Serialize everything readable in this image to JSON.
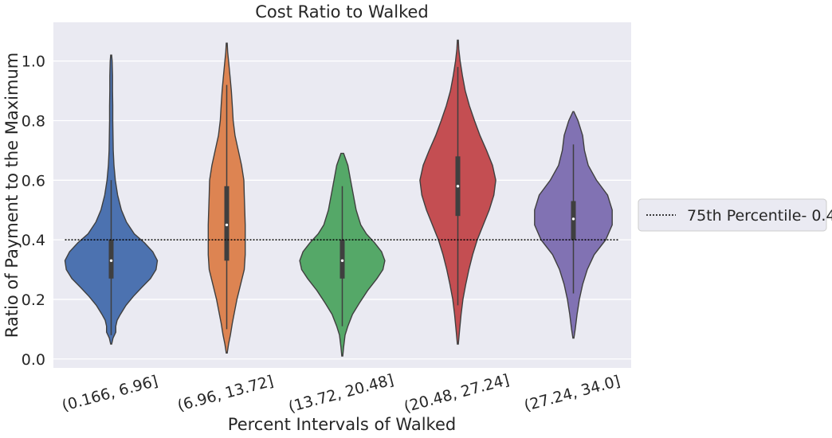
{
  "chart_data": {
    "type": "violin",
    "title": "Cost Ratio to Walked",
    "xlabel": "Percent Intervals of Walked",
    "ylabel": "Ratio of Payment to the Maximum",
    "ylim": [
      -0.03,
      1.13
    ],
    "yticks": [
      "0.0",
      "0.2",
      "0.4",
      "0.6",
      "0.8",
      "1.0"
    ],
    "grid": true,
    "legend_position": "right",
    "categories": [
      "(0.166, 6.96]",
      "(6.96, 13.72]",
      "(13.72, 20.48]",
      "(20.48, 27.24]",
      "(27.24, 34.0]"
    ],
    "series": [
      {
        "category": "(0.166, 6.96]",
        "color": "#4c72b0",
        "min": 0.05,
        "max": 1.02,
        "q1": 0.27,
        "median": 0.33,
        "q3": 0.4,
        "whisker_low": 0.08,
        "whisker_high": 0.6,
        "profile": [
          [
            0.05,
            0.01
          ],
          [
            0.07,
            0.04
          ],
          [
            0.09,
            0.1
          ],
          [
            0.11,
            0.1
          ],
          [
            0.13,
            0.13
          ],
          [
            0.15,
            0.2
          ],
          [
            0.18,
            0.32
          ],
          [
            0.21,
            0.48
          ],
          [
            0.24,
            0.66
          ],
          [
            0.27,
            0.85
          ],
          [
            0.3,
            0.97
          ],
          [
            0.33,
            1.0
          ],
          [
            0.36,
            0.9
          ],
          [
            0.39,
            0.72
          ],
          [
            0.42,
            0.5
          ],
          [
            0.46,
            0.33
          ],
          [
            0.5,
            0.22
          ],
          [
            0.55,
            0.14
          ],
          [
            0.6,
            0.09
          ],
          [
            0.65,
            0.06
          ],
          [
            0.7,
            0.045
          ],
          [
            0.75,
            0.04
          ],
          [
            0.8,
            0.035
          ],
          [
            0.85,
            0.035
          ],
          [
            0.9,
            0.03
          ],
          [
            0.95,
            0.03
          ],
          [
            1.0,
            0.02
          ],
          [
            1.02,
            0.01
          ]
        ]
      },
      {
        "category": "(6.96, 13.72]",
        "color": "#dd8452",
        "min": 0.02,
        "max": 1.06,
        "q1": 0.33,
        "median": 0.45,
        "q3": 0.58,
        "whisker_low": 0.1,
        "whisker_high": 0.92,
        "profile": [
          [
            0.02,
            0.01
          ],
          [
            0.05,
            0.04
          ],
          [
            0.08,
            0.08
          ],
          [
            0.12,
            0.12
          ],
          [
            0.16,
            0.17
          ],
          [
            0.2,
            0.22
          ],
          [
            0.25,
            0.3
          ],
          [
            0.3,
            0.38
          ],
          [
            0.35,
            0.4
          ],
          [
            0.4,
            0.4
          ],
          [
            0.45,
            0.4
          ],
          [
            0.5,
            0.39
          ],
          [
            0.55,
            0.38
          ],
          [
            0.6,
            0.37
          ],
          [
            0.65,
            0.32
          ],
          [
            0.7,
            0.25
          ],
          [
            0.75,
            0.18
          ],
          [
            0.8,
            0.14
          ],
          [
            0.85,
            0.12
          ],
          [
            0.9,
            0.1
          ],
          [
            0.95,
            0.07
          ],
          [
            1.0,
            0.04
          ],
          [
            1.03,
            0.02
          ],
          [
            1.06,
            0.01
          ]
        ]
      },
      {
        "category": "(13.72, 20.48]",
        "color": "#55a868",
        "min": 0.01,
        "max": 0.69,
        "q1": 0.27,
        "median": 0.33,
        "q3": 0.4,
        "whisker_low": 0.11,
        "whisker_high": 0.58,
        "profile": [
          [
            0.01,
            0.01
          ],
          [
            0.04,
            0.03
          ],
          [
            0.08,
            0.06
          ],
          [
            0.11,
            0.12
          ],
          [
            0.15,
            0.22
          ],
          [
            0.19,
            0.38
          ],
          [
            0.23,
            0.55
          ],
          [
            0.27,
            0.75
          ],
          [
            0.3,
            0.88
          ],
          [
            0.33,
            0.92
          ],
          [
            0.36,
            0.85
          ],
          [
            0.39,
            0.7
          ],
          [
            0.42,
            0.52
          ],
          [
            0.45,
            0.4
          ],
          [
            0.5,
            0.3
          ],
          [
            0.55,
            0.24
          ],
          [
            0.6,
            0.18
          ],
          [
            0.65,
            0.12
          ],
          [
            0.69,
            0.03
          ]
        ]
      },
      {
        "category": "(20.48, 27.24]",
        "color": "#c44e52",
        "min": 0.05,
        "max": 1.07,
        "q1": 0.48,
        "median": 0.58,
        "q3": 0.68,
        "whisker_low": 0.18,
        "whisker_high": 0.98,
        "profile": [
          [
            0.05,
            0.01
          ],
          [
            0.1,
            0.04
          ],
          [
            0.15,
            0.07
          ],
          [
            0.2,
            0.11
          ],
          [
            0.25,
            0.17
          ],
          [
            0.3,
            0.24
          ],
          [
            0.35,
            0.32
          ],
          [
            0.4,
            0.42
          ],
          [
            0.45,
            0.55
          ],
          [
            0.5,
            0.68
          ],
          [
            0.55,
            0.78
          ],
          [
            0.6,
            0.82
          ],
          [
            0.65,
            0.75
          ],
          [
            0.7,
            0.62
          ],
          [
            0.75,
            0.48
          ],
          [
            0.8,
            0.36
          ],
          [
            0.85,
            0.25
          ],
          [
            0.9,
            0.16
          ],
          [
            0.95,
            0.1
          ],
          [
            1.0,
            0.05
          ],
          [
            1.04,
            0.02
          ],
          [
            1.07,
            0.01
          ]
        ]
      },
      {
        "category": "(27.24, 34.0]",
        "color": "#8172b3",
        "min": 0.07,
        "max": 0.83,
        "q1": 0.4,
        "median": 0.47,
        "q3": 0.53,
        "whisker_low": 0.22,
        "whisker_high": 0.72,
        "profile": [
          [
            0.07,
            0.01
          ],
          [
            0.1,
            0.04
          ],
          [
            0.15,
            0.08
          ],
          [
            0.2,
            0.13
          ],
          [
            0.25,
            0.2
          ],
          [
            0.3,
            0.3
          ],
          [
            0.35,
            0.45
          ],
          [
            0.4,
            0.7
          ],
          [
            0.45,
            0.84
          ],
          [
            0.5,
            0.84
          ],
          [
            0.55,
            0.74
          ],
          [
            0.6,
            0.5
          ],
          [
            0.65,
            0.32
          ],
          [
            0.7,
            0.24
          ],
          [
            0.75,
            0.2
          ],
          [
            0.8,
            0.1
          ],
          [
            0.83,
            0.01
          ]
        ]
      }
    ],
    "reference_line": {
      "label": "75th Percentile- 0.4",
      "y": 0.4,
      "style": "dotted",
      "color": "#000000"
    }
  }
}
